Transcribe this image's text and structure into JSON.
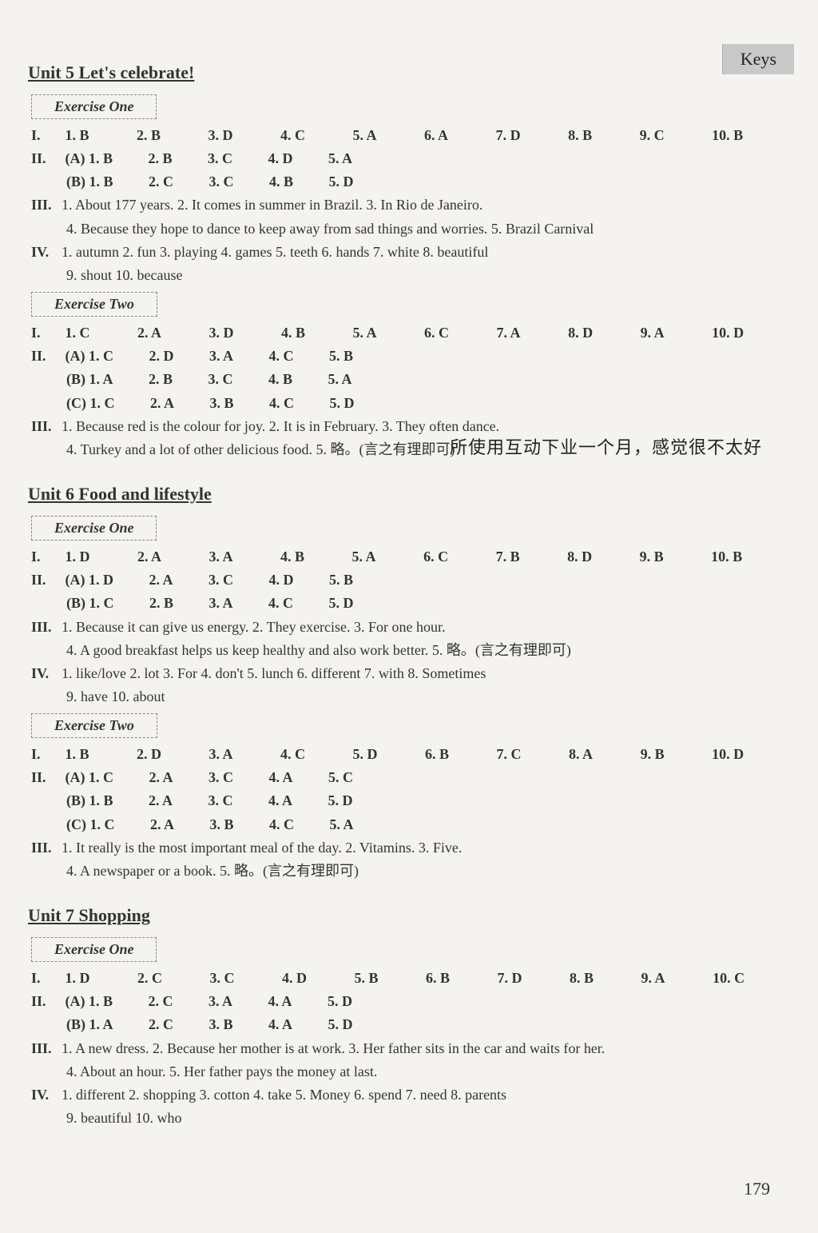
{
  "header_tab": "Keys",
  "handwriting": "所使用互动下业一个月，感觉很不太好",
  "page_number": "179",
  "units": {
    "u5": {
      "title": "Unit 5   Let's celebrate!",
      "ex1": {
        "label": "Exercise One",
        "I": [
          "1. B",
          "2. B",
          "3. D",
          "4. C",
          "5. A",
          "6. A",
          "7. D",
          "8. B",
          "9. C",
          "10. B"
        ],
        "II_A": [
          "(A) 1. B",
          "2. B",
          "3. C",
          "4. D",
          "5. A"
        ],
        "II_B": [
          "(B) 1. B",
          "2. C",
          "3. C",
          "4. B",
          "5. D"
        ],
        "III": "1. About 177 years.     2. It comes in summer in Brazil.     3. In Rio de Janeiro.",
        "III_b": "4. Because they hope to dance to keep away from sad things and worries.     5. Brazil Carnival",
        "IV": "1. autumn   2. fun   3. playing   4. games   5. teeth   6. hands   7. white   8. beautiful",
        "IV_b": "9. shout  10. because"
      },
      "ex2": {
        "label": "Exercise Two",
        "I": [
          "1. C",
          "2. A",
          "3. D",
          "4. B",
          "5. A",
          "6. C",
          "7. A",
          "8. D",
          "9. A",
          "10. D"
        ],
        "II_A": [
          "(A) 1. C",
          "2. D",
          "3. A",
          "4. C",
          "5. B"
        ],
        "II_B": [
          "(B) 1. A",
          "2. B",
          "3. C",
          "4. B",
          "5. A"
        ],
        "II_C": [
          "(C) 1. C",
          "2. A",
          "3. B",
          "4. C",
          "5. D"
        ],
        "III": "1. Because red is the colour for joy.     2. It is in February.     3. They often dance.",
        "III_b": "4. Turkey and a lot of other delicious food.     5. 略。(言之有理即可)"
      }
    },
    "u6": {
      "title": "Unit 6   Food and lifestyle",
      "ex1": {
        "label": "Exercise One",
        "I": [
          "1. D",
          "2. A",
          "3. A",
          "4. B",
          "5. A",
          "6. C",
          "7. B",
          "8. D",
          "9. B",
          "10. B"
        ],
        "II_A": [
          "(A) 1. D",
          "2. A",
          "3. C",
          "4. D",
          "5. B"
        ],
        "II_B": [
          "(B) 1. C",
          "2. B",
          "3. A",
          "4. C",
          "5. D"
        ],
        "III": "1. Because it can give us energy.     2. They exercise.     3. For one hour.",
        "III_b": "4. A good breakfast helps us keep healthy and also work better.     5. 略。(言之有理即可)",
        "IV": "1. like/love   2. lot   3. For   4. don't   5. lunch   6. different   7. with   8. Sometimes",
        "IV_b": "9. have  10. about"
      },
      "ex2": {
        "label": "Exercise Two",
        "I": [
          "1. B",
          "2. D",
          "3. A",
          "4. C",
          "5. D",
          "6. B",
          "7. C",
          "8. A",
          "9. B",
          "10. D"
        ],
        "II_A": [
          "(A) 1. C",
          "2. A",
          "3. C",
          "4. A",
          "5. C"
        ],
        "II_B": [
          "(B) 1. B",
          "2. A",
          "3. C",
          "4. A",
          "5. D"
        ],
        "II_C": [
          "(C) 1. C",
          "2. A",
          "3. B",
          "4. C",
          "5. A"
        ],
        "III": "1. It really is the most important meal of the day.     2. Vitamins.     3. Five.",
        "III_b": "4. A newspaper or a book.     5. 略。(言之有理即可)"
      }
    },
    "u7": {
      "title": "Unit 7   Shopping",
      "ex1": {
        "label": "Exercise One",
        "I": [
          "1. D",
          "2. C",
          "3. C",
          "4. D",
          "5. B",
          "6. B",
          "7. D",
          "8. B",
          "9. A",
          "10. C"
        ],
        "II_A": [
          "(A) 1. B",
          "2. C",
          "3. A",
          "4. A",
          "5. D"
        ],
        "II_B": [
          "(B) 1. A",
          "2. C",
          "3. B",
          "4. A",
          "5. D"
        ],
        "III": "1. A new dress.    2. Because her mother is at work.    3. Her father sits in the car and waits for her.",
        "III_b": "4. About an hour.     5. Her father pays the money at last.",
        "IV": "1. different  2. shopping  3. cotton  4. take  5. Money  6. spend  7. need  8. parents",
        "IV_b": "9. beautiful  10. who"
      }
    }
  }
}
